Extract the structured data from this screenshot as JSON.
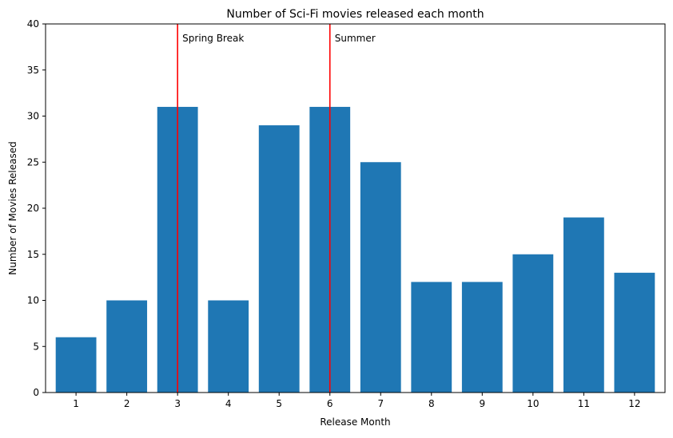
{
  "chart_data": {
    "type": "bar",
    "title": "Number of Sci-Fi movies released each month",
    "xlabel": "Release Month",
    "ylabel": "Number of Movies Released",
    "categories": [
      "1",
      "2",
      "3",
      "4",
      "5",
      "6",
      "7",
      "8",
      "9",
      "10",
      "11",
      "12"
    ],
    "values": [
      6,
      10,
      31,
      10,
      29,
      31,
      25,
      12,
      12,
      15,
      19,
      13
    ],
    "ylim": [
      0,
      40
    ],
    "yticks": [
      0,
      5,
      10,
      15,
      20,
      25,
      30,
      35,
      40
    ],
    "grid": false,
    "bar_color": "#1f77b4",
    "annotations": [
      {
        "x": 3,
        "label": "Spring Break",
        "color": "#ff0000"
      },
      {
        "x": 6,
        "label": "Summer",
        "color": "#ff0000"
      }
    ]
  }
}
